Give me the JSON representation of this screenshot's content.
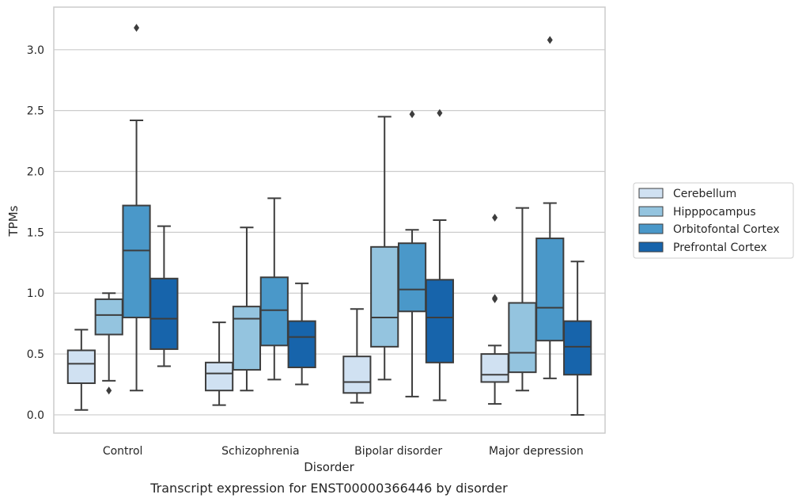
{
  "caption": "Transcript expression for ENST00000366446 by disorder",
  "chart_data": {
    "type": "box",
    "xlabel": "Disorder",
    "ylabel": "TPMs",
    "categories": [
      "Control",
      "Schizophrenia",
      "Bipolar disorder",
      "Major depression"
    ],
    "ylim": [
      -0.15,
      3.35
    ],
    "yticks": [
      0.0,
      0.5,
      1.0,
      1.5,
      2.0,
      2.5,
      3.0
    ],
    "ytick_labels": [
      "0.0",
      "0.5",
      "1.0",
      "1.5",
      "2.0",
      "2.5",
      "3.0"
    ],
    "grid": "horizontal",
    "legend_position": "right",
    "series": [
      {
        "name": "Cerebellum",
        "color": "#d0e1f2",
        "boxes": [
          {
            "whislo": 0.04,
            "q1": 0.26,
            "med": 0.42,
            "q3": 0.53,
            "whishi": 0.7,
            "fliers": []
          },
          {
            "whislo": 0.08,
            "q1": 0.2,
            "med": 0.34,
            "q3": 0.43,
            "whishi": 0.76,
            "fliers": []
          },
          {
            "whislo": 0.1,
            "q1": 0.18,
            "med": 0.27,
            "q3": 0.48,
            "whishi": 0.87,
            "fliers": []
          },
          {
            "whislo": 0.09,
            "q1": 0.27,
            "med": 0.33,
            "q3": 0.5,
            "whishi": 0.57,
            "fliers": [
              0.95,
              0.96,
              1.62
            ]
          }
        ]
      },
      {
        "name": "Hipppocampus",
        "color": "#94c4df",
        "boxes": [
          {
            "whislo": 0.28,
            "q1": 0.66,
            "med": 0.82,
            "q3": 0.95,
            "whishi": 1.0,
            "fliers": [
              0.2
            ]
          },
          {
            "whislo": 0.2,
            "q1": 0.37,
            "med": 0.79,
            "q3": 0.89,
            "whishi": 1.54,
            "fliers": []
          },
          {
            "whislo": 0.29,
            "q1": 0.56,
            "med": 0.8,
            "q3": 1.38,
            "whishi": 2.45,
            "fliers": []
          },
          {
            "whislo": 0.2,
            "q1": 0.35,
            "med": 0.51,
            "q3": 0.92,
            "whishi": 1.7,
            "fliers": []
          }
        ]
      },
      {
        "name": "Orbitofontal Cortex",
        "color": "#4a98c9",
        "boxes": [
          {
            "whislo": 0.2,
            "q1": 0.8,
            "med": 1.35,
            "q3": 1.72,
            "whishi": 2.42,
            "fliers": [
              3.18
            ]
          },
          {
            "whislo": 0.29,
            "q1": 0.57,
            "med": 0.86,
            "q3": 1.13,
            "whishi": 1.78,
            "fliers": []
          },
          {
            "whislo": 0.15,
            "q1": 0.85,
            "med": 1.03,
            "q3": 1.41,
            "whishi": 1.52,
            "fliers": [
              2.47
            ]
          },
          {
            "whislo": 0.3,
            "q1": 0.61,
            "med": 0.88,
            "q3": 1.45,
            "whishi": 1.74,
            "fliers": [
              3.08
            ]
          }
        ]
      },
      {
        "name": "Prefrontal Cortex",
        "color": "#1764ab",
        "boxes": [
          {
            "whislo": 0.4,
            "q1": 0.54,
            "med": 0.79,
            "q3": 1.12,
            "whishi": 1.55,
            "fliers": []
          },
          {
            "whislo": 0.25,
            "q1": 0.39,
            "med": 0.64,
            "q3": 0.77,
            "whishi": 1.08,
            "fliers": []
          },
          {
            "whislo": 0.12,
            "q1": 0.43,
            "med": 0.8,
            "q3": 1.11,
            "whishi": 1.6,
            "fliers": [
              2.48
            ]
          },
          {
            "whislo": 0.0,
            "q1": 0.33,
            "med": 0.56,
            "q3": 0.77,
            "whishi": 1.26,
            "fliers": []
          }
        ]
      }
    ]
  }
}
